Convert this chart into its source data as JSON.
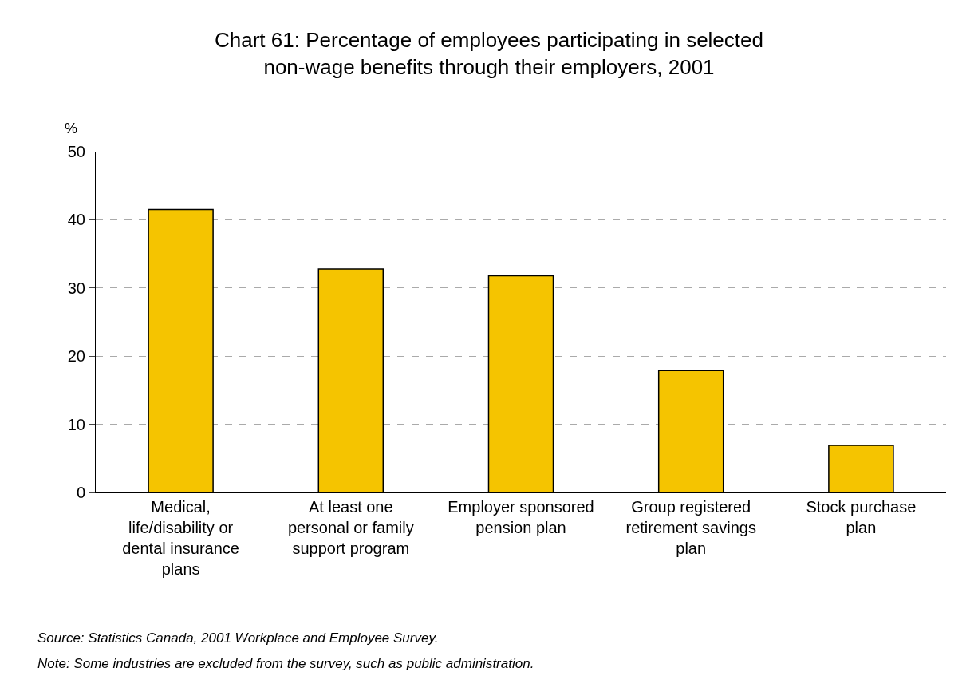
{
  "chart_data": {
    "type": "bar",
    "title": "Chart 61: Percentage of employees participating in selected non-wage benefits through their employers, 2001",
    "ylabel": "%",
    "categories": [
      "Medical, life/disability or dental insurance plans",
      "At least one personal or family support program",
      "Employer sponsored pension plan",
      "Group registered retirement savings plan",
      "Stock purchase plan"
    ],
    "values": [
      41.5,
      32.8,
      31.8,
      17.9,
      6.9
    ],
    "color": "#f5c400",
    "ylim": [
      0,
      50
    ],
    "yticks": [
      0,
      10,
      20,
      30,
      40,
      50
    ],
    "grid": "y",
    "legend": false,
    "annotations": [
      "Source: Statistics Canada, 2001 Workplace and Employee Survey.",
      "Note: Some industries are excluded from the survey, such as public administration."
    ]
  }
}
